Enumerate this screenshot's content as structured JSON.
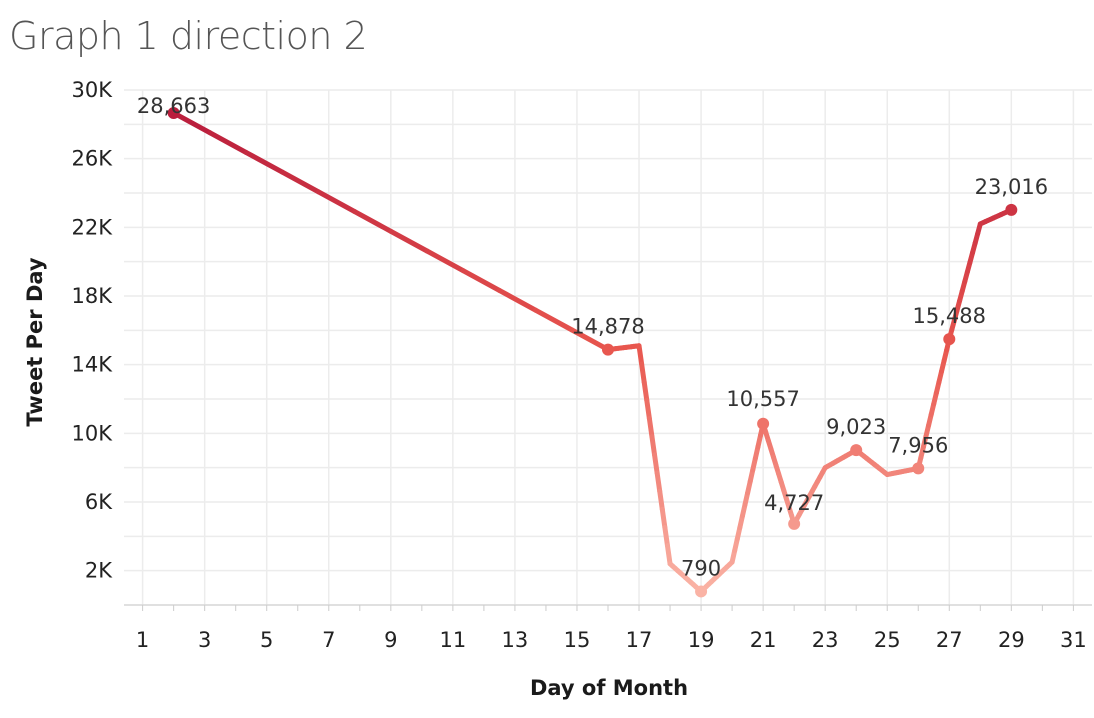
{
  "chart_data": {
    "type": "line",
    "title": "Graph 1 direction 2",
    "xlabel": "Day of Month",
    "ylabel": "Tweet Per Day",
    "xlim": [
      0.4,
      31.6
    ],
    "ylim": [
      0,
      30000
    ],
    "grid": true,
    "x_ticks": [
      1,
      3,
      5,
      7,
      9,
      11,
      13,
      15,
      17,
      19,
      21,
      23,
      25,
      27,
      29,
      31
    ],
    "y_ticks": [
      2000,
      6000,
      10000,
      14000,
      18000,
      22000,
      26000,
      30000
    ],
    "y_tick_labels": [
      "2K",
      "6K",
      "10K",
      "14K",
      "18K",
      "22K",
      "26K",
      "30K"
    ],
    "series": [
      {
        "x": [
          2,
          16,
          17,
          18,
          19,
          20,
          21,
          22,
          23,
          24,
          25,
          26,
          27,
          28,
          29
        ],
        "y": [
          28663,
          14878,
          15100,
          2400,
          790,
          2500,
          10557,
          4727,
          8000,
          9023,
          7600,
          7956,
          15488,
          22200,
          23016
        ]
      }
    ],
    "data_labels": [
      {
        "x": 2,
        "y": 28663,
        "text": "28,663"
      },
      {
        "x": 16,
        "y": 14878,
        "text": "14,878"
      },
      {
        "x": 19,
        "y": 790,
        "text": "790"
      },
      {
        "x": 21,
        "y": 10557,
        "text": "10,557"
      },
      {
        "x": 22,
        "y": 4727,
        "text": "4,727"
      },
      {
        "x": 24,
        "y": 9023,
        "text": "9,023"
      },
      {
        "x": 26,
        "y": 7956,
        "text": "7,956"
      },
      {
        "x": 27,
        "y": 15488,
        "text": "15,488"
      },
      {
        "x": 29,
        "y": 23016,
        "text": "23,016"
      }
    ],
    "colors": {
      "high": "#b5173a",
      "mid": "#e8564e",
      "low": "#fbb8aa",
      "grid": "#ececec",
      "axis": "#cccccc"
    }
  }
}
